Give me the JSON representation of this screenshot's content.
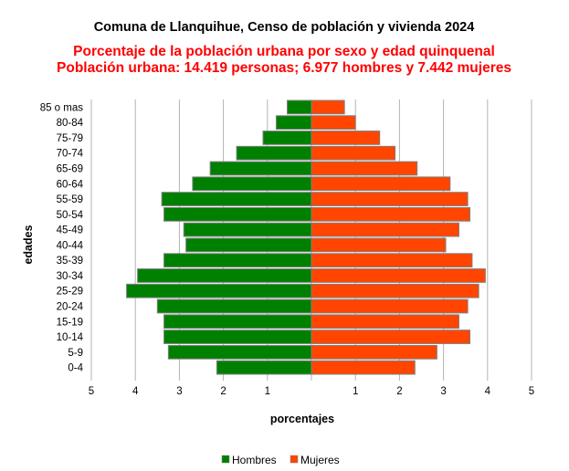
{
  "chart_data": {
    "type": "bar",
    "orientation": "horizontal",
    "layout": "population-pyramid",
    "title": "Comuna de Llanquihue, Censo de población y vivienda 2024",
    "subtitle_lines": [
      "Porcentaje de la población urbana por sexo y edad quinquenal",
      "Población urbana: 14.419 personas; 6.977 hombres y 7.442 mujeres"
    ],
    "xlabel": "porcentajes",
    "ylabel": "edades",
    "xlim": [
      -5,
      5
    ],
    "x_ticks": [
      -5,
      -4,
      -3,
      -2,
      -1,
      1,
      2,
      3,
      4,
      5
    ],
    "x_tick_labels": [
      "5",
      "4",
      "3",
      "2",
      "1",
      "1",
      "2",
      "3",
      "4",
      "5"
    ],
    "grid": "vertical",
    "legend_position": "bottom",
    "categories": [
      "85 o mas",
      "80-84",
      "75-79",
      "70-74",
      "65-69",
      "60-64",
      "55-59",
      "50-54",
      "45-49",
      "40-44",
      "35-39",
      "30-34",
      "25-29",
      "20-24",
      "15-19",
      "10-14",
      "5-9",
      "0-4"
    ],
    "series": [
      {
        "name": "Hombres",
        "color": "#008000",
        "side": "left",
        "values": [
          0.55,
          0.8,
          1.1,
          1.7,
          2.3,
          2.7,
          3.4,
          3.35,
          2.9,
          2.85,
          3.35,
          3.95,
          4.2,
          3.5,
          3.35,
          3.35,
          3.25,
          2.15
        ]
      },
      {
        "name": "Mujeres",
        "color": "#ff4500",
        "side": "right",
        "values": [
          0.75,
          1.0,
          1.55,
          1.9,
          2.4,
          3.15,
          3.55,
          3.6,
          3.35,
          3.05,
          3.65,
          3.95,
          3.8,
          3.55,
          3.35,
          3.6,
          2.85,
          2.35
        ]
      }
    ]
  },
  "colors": {
    "title": "#000000",
    "subtitle": "#ff0000",
    "grid": "#b3b3b3",
    "bar_outline": "#808080"
  }
}
